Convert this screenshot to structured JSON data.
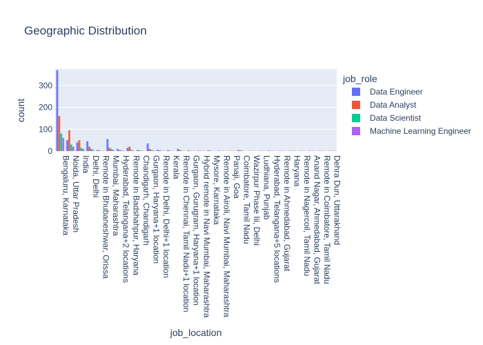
{
  "chart_data": {
    "type": "bar",
    "title": "Geographic Distribution",
    "x_label": "job_location",
    "y_label": "count",
    "legend_title": "job_role",
    "categories": [
      "Bengaluru, Karnataka",
      "Noida, Uttar Pradesh",
      "India",
      "Delhi, Delhi",
      "Remote in Bhubaneshwar, Orissa",
      "Mumbai, Maharashtra",
      "Hyderabad, Telangana+2 locations",
      "Remote in Badshahpur, Haryana",
      "Chandigarh, Chandigarh",
      "Gurgaon, Haryana+1 location",
      "Remote in Delhi, Delhi+1 location",
      "Kerala",
      "Remote in Chennai, Tamil Nadu+1 location",
      "Gurgaon, Gurugram, Haryana+1 location",
      "Hybrid remote in Navi Mumbai, Maharashtra",
      "Mysore, Karnataka",
      "Remote in Airoli, Navi Mumbai, Maharashtra",
      "Panaji, Goa",
      "Coimbatore, Tamil Nadu",
      "Wazirpur Phase Iii, Delhi",
      "Ludhiana, Punjab",
      "Hyderabad, Telangana+5 locations",
      "Remote in Ahmedabad, Gujarat",
      "Haryana",
      "Remote in Nagercoil, Tamil Nadu",
      "Anand Nagar, Ahmedabad, Gujarat",
      "Remote in Coimbatore, Tamil Nadu",
      "Dehra Dun, Uttarakhand"
    ],
    "series": [
      {
        "name": "Data Engineer",
        "color": "#636efa",
        "values": [
          370,
          50,
          40,
          45,
          5,
          55,
          10,
          15,
          5,
          35,
          6,
          4,
          10,
          3,
          2,
          3,
          2,
          1,
          5,
          1,
          1,
          2,
          1,
          1,
          1,
          1,
          1,
          1
        ]
      },
      {
        "name": "Data Analyst",
        "color": "#EF553B",
        "values": [
          160,
          95,
          50,
          20,
          3,
          15,
          5,
          20,
          3,
          10,
          3,
          2,
          5,
          2,
          1,
          2,
          1,
          1,
          3,
          1,
          1,
          1,
          1,
          1,
          1,
          1,
          1,
          1
        ]
      },
      {
        "name": "Data Scientist",
        "color": "#00cc96",
        "values": [
          80,
          30,
          15,
          10,
          1,
          10,
          3,
          5,
          2,
          5,
          2,
          1,
          2,
          1,
          1,
          1,
          1,
          1,
          2,
          1,
          1,
          1,
          1,
          1,
          1,
          1,
          1,
          1
        ]
      },
      {
        "name": "Machine Learning Engineer",
        "color": "#ab63fa",
        "values": [
          60,
          20,
          10,
          5,
          1,
          5,
          2,
          2,
          1,
          3,
          1,
          1,
          1,
          1,
          1,
          1,
          1,
          1,
          1,
          1,
          1,
          1,
          1,
          1,
          1,
          1,
          1,
          1
        ]
      }
    ],
    "ylim": [
      0,
      375
    ],
    "yticks": [
      0,
      100,
      200,
      300
    ],
    "grid": true
  }
}
